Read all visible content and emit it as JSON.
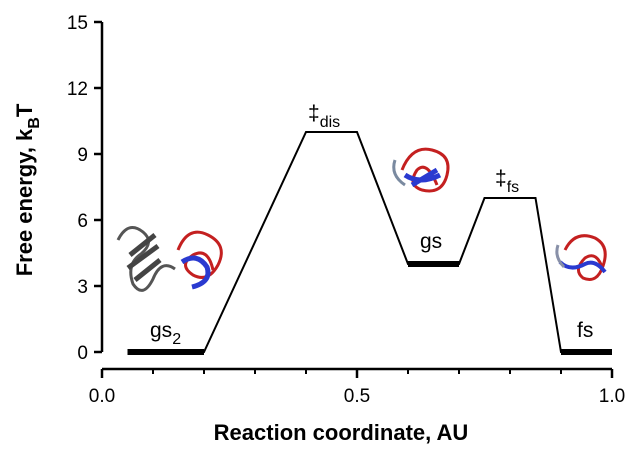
{
  "chart_data": {
    "type": "line",
    "x_label": "Reaction coordinate, AU",
    "y_label": {
      "main": "Free energy, k",
      "sub": "B",
      "tail": "T"
    },
    "x": [
      0.05,
      0.2,
      0.4,
      0.5,
      0.6,
      0.7,
      0.75,
      0.85,
      0.9,
      1.0
    ],
    "series": [
      {
        "color": "#000000",
        "values": [
          0,
          0,
          10,
          10,
          4,
          4,
          7,
          7,
          0,
          0
        ]
      },
      {
        "color": "#000000",
        "values": [
          0,
          0,
          null,
          null,
          4,
          4,
          null,
          null,
          0,
          0
        ]
      }
    ],
    "xlim": [
      0,
      1.0
    ],
    "ylim": [
      0,
      15
    ],
    "xticks": [
      {
        "value": 0,
        "label": "0.0"
      },
      0.5,
      {
        "value": 1.0,
        "label": "1.0"
      }
    ],
    "xminor_ticks": [
      0.1,
      0.2,
      0.3,
      0.4,
      0.6,
      0.7,
      0.8,
      0.9
    ],
    "yticks": [
      0,
      3,
      6,
      9,
      12,
      15
    ],
    "annotations": [
      {
        "text": "gs",
        "sub": "2"
      },
      {
        "text": "‡",
        "sub": "dis"
      },
      {
        "text": "gs"
      },
      {
        "text": "‡",
        "sub": "fs"
      },
      {
        "text": "fs"
      }
    ]
  }
}
